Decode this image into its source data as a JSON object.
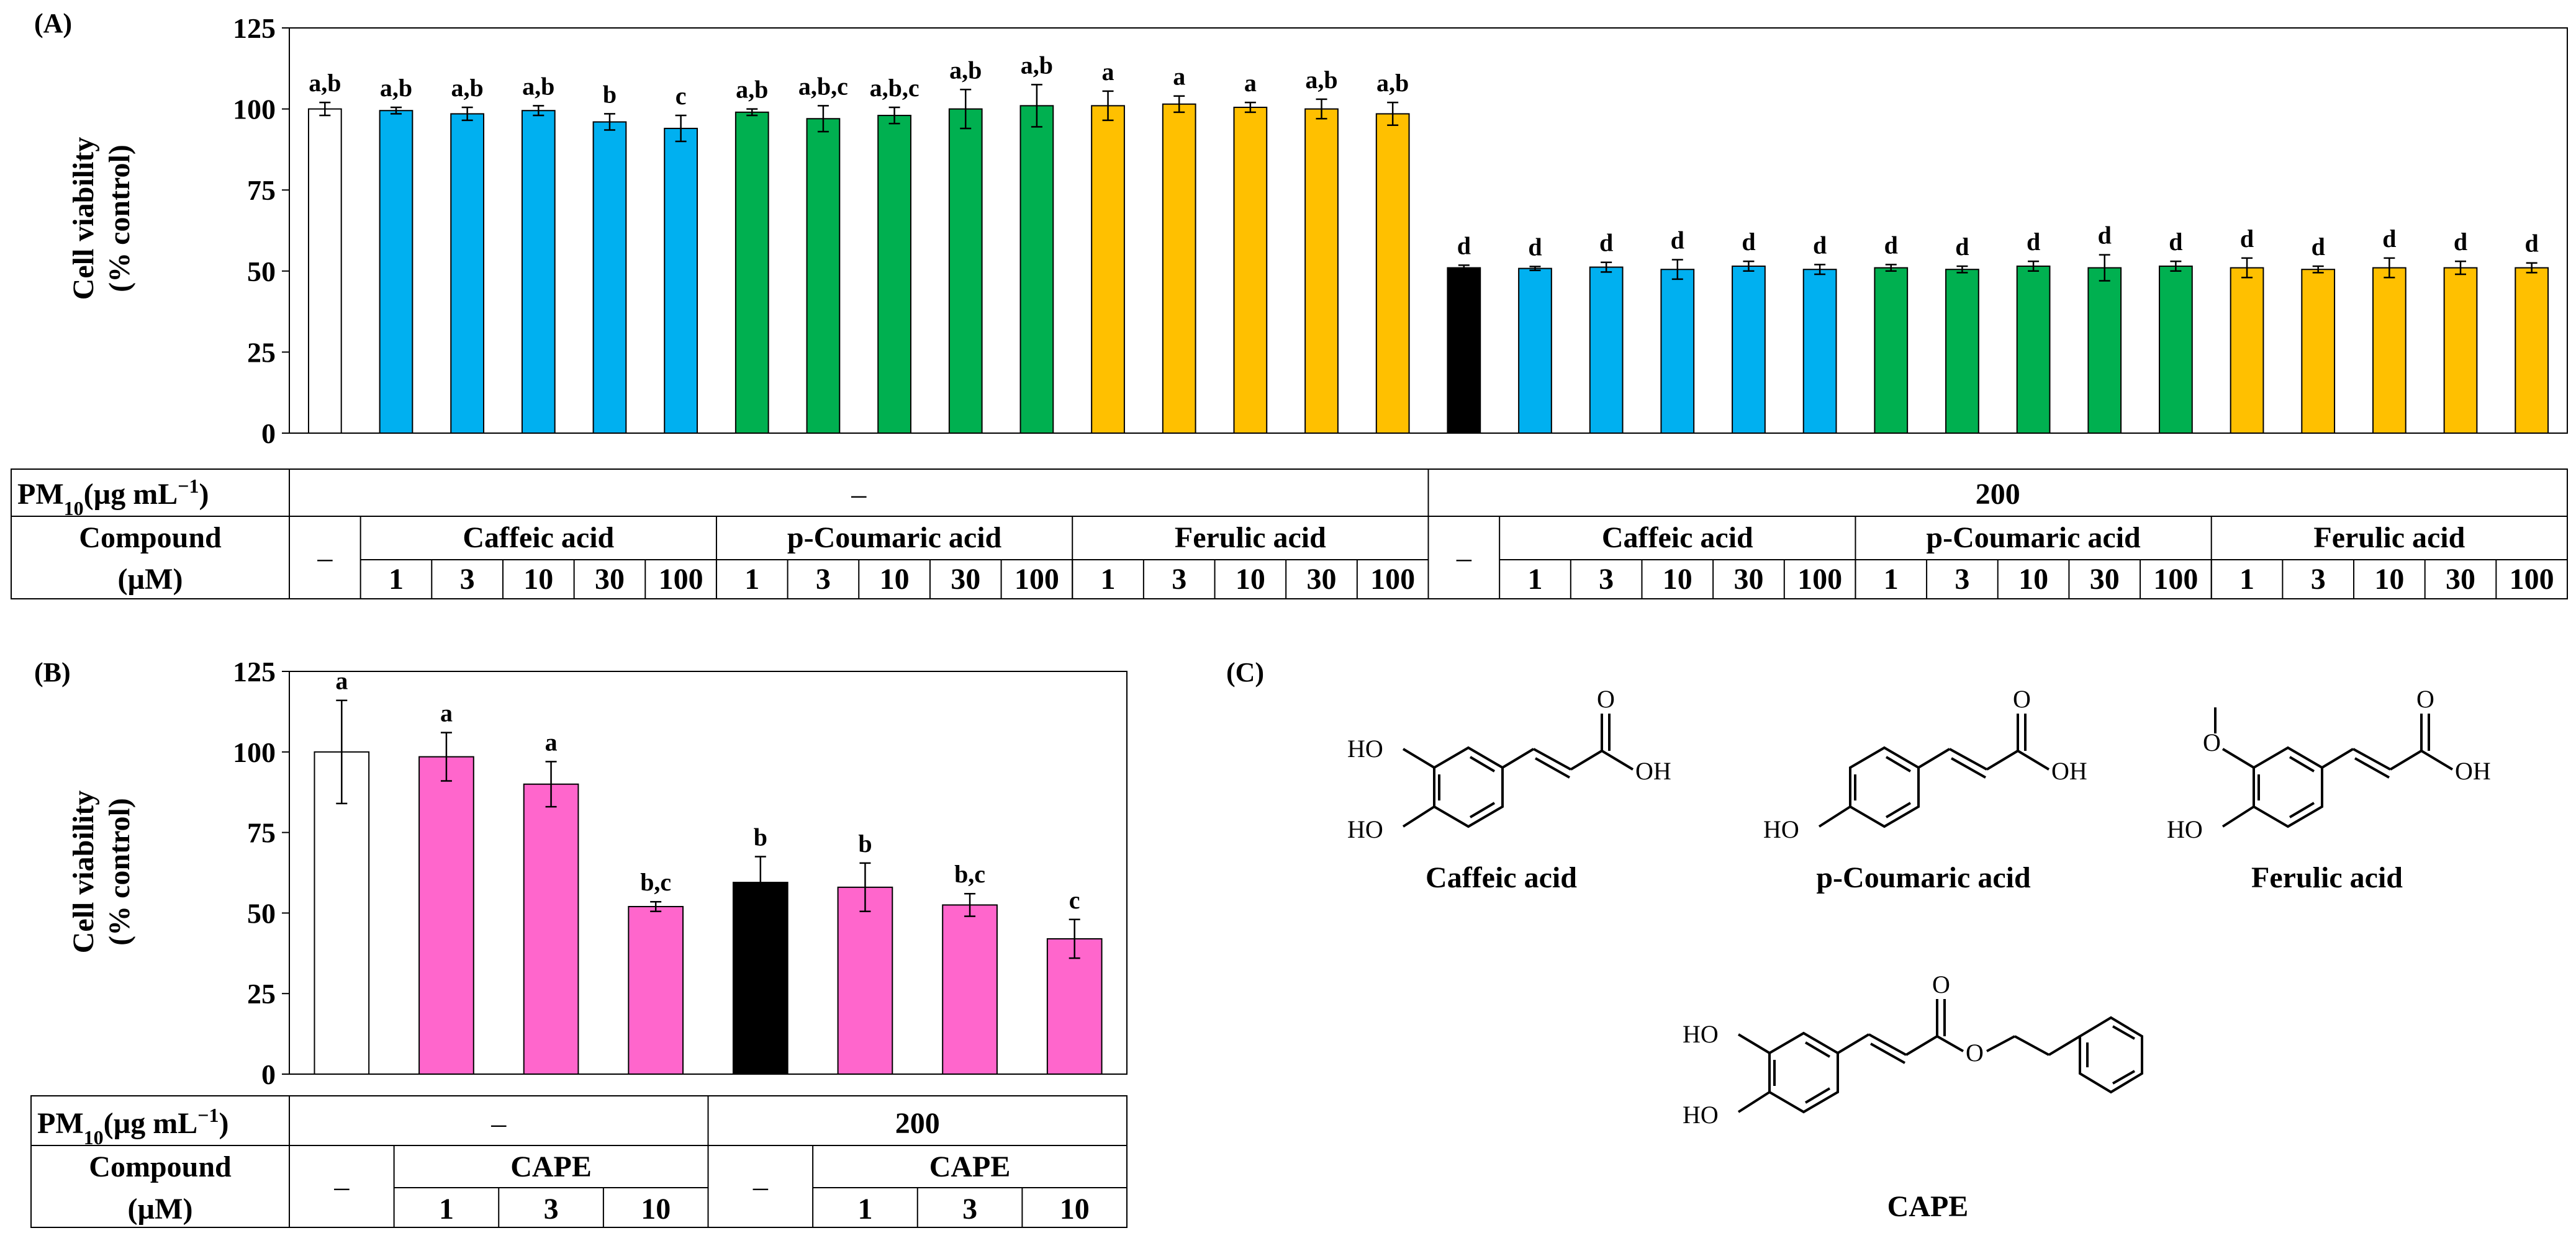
{
  "colors": {
    "control": "#ffffff",
    "pm": "#000000",
    "caffeic": "#00b0f0",
    "coumaric": "#00b050",
    "ferulic": "#ffc000",
    "cape": "#ff66cc"
  },
  "panel_a": {
    "label": "(A)",
    "ylabel_line1": "Cell viability",
    "ylabel_line2": "(% control)",
    "pm_label_text": "PM",
    "pm_label_sub": "10",
    "pm_label_unit": "(µg mL",
    "pm_label_exp": "−1",
    "pm_label_close": ")",
    "compound_label": "Compound",
    "um_label": "(µM)",
    "pm_values": [
      "–",
      "200"
    ],
    "dash": "–",
    "compound_groups": [
      "Caffeic acid",
      "p-Coumaric acid",
      "Ferulic acid"
    ],
    "concentrations": [
      "1",
      "3",
      "10",
      "30",
      "100"
    ]
  },
  "panel_b": {
    "label": "(B)",
    "ylabel_line1": "Cell viability",
    "ylabel_line2": "(% control)",
    "pm_values": [
      "–",
      "200"
    ],
    "dash": "–",
    "compound_group": "CAPE",
    "concentrations": [
      "1",
      "3",
      "10"
    ]
  },
  "panel_c": {
    "label": "(C)",
    "structures": [
      {
        "name": "Caffeic acid",
        "ho1": "HO",
        "ho2": "HO",
        "oh": "OH",
        "o": "O"
      },
      {
        "name": "p-Coumaric acid",
        "ho1": "",
        "ho2": "HO",
        "oh": "OH",
        "o": "O"
      },
      {
        "name": "Ferulic acid",
        "ho1": "O",
        "ho2": "HO",
        "oh": "OH",
        "o": "O"
      },
      {
        "name": "CAPE",
        "ho1": "HO",
        "ho2": "HO",
        "oh": "O",
        "o": "O"
      }
    ]
  },
  "chart_data": [
    {
      "type": "bar",
      "panel": "A",
      "title": "",
      "xlabel": "",
      "ylabel": "Cell viability (% control)",
      "ylim": [
        0,
        125
      ],
      "yticks": [
        0,
        25,
        50,
        75,
        100,
        125
      ],
      "grid": false,
      "bars": [
        {
          "pm": "–",
          "compound": "–",
          "conc": "",
          "color": "control",
          "value": 100,
          "err": 2,
          "letter": "a,b"
        },
        {
          "pm": "–",
          "compound": "Caffeic acid",
          "conc": "1",
          "color": "caffeic",
          "value": 99.5,
          "err": 1,
          "letter": "a,b"
        },
        {
          "pm": "–",
          "compound": "Caffeic acid",
          "conc": "3",
          "color": "caffeic",
          "value": 98.5,
          "err": 2,
          "letter": "a,b"
        },
        {
          "pm": "–",
          "compound": "Caffeic acid",
          "conc": "10",
          "color": "caffeic",
          "value": 99.5,
          "err": 1.5,
          "letter": "a,b"
        },
        {
          "pm": "–",
          "compound": "Caffeic acid",
          "conc": "30",
          "color": "caffeic",
          "value": 96,
          "err": 2.5,
          "letter": "b"
        },
        {
          "pm": "–",
          "compound": "Caffeic acid",
          "conc": "100",
          "color": "caffeic",
          "value": 94,
          "err": 4,
          "letter": "c"
        },
        {
          "pm": "–",
          "compound": "p-Coumaric acid",
          "conc": "1",
          "color": "coumaric",
          "value": 99,
          "err": 1,
          "letter": "a,b"
        },
        {
          "pm": "–",
          "compound": "p-Coumaric acid",
          "conc": "3",
          "color": "coumaric",
          "value": 97,
          "err": 4,
          "letter": "a,b,c"
        },
        {
          "pm": "–",
          "compound": "p-Coumaric acid",
          "conc": "10",
          "color": "coumaric",
          "value": 98,
          "err": 2.5,
          "letter": "a,b,c"
        },
        {
          "pm": "–",
          "compound": "p-Coumaric acid",
          "conc": "30",
          "color": "coumaric",
          "value": 100,
          "err": 6,
          "letter": "a,b"
        },
        {
          "pm": "–",
          "compound": "p-Coumaric acid",
          "conc": "100",
          "color": "coumaric",
          "value": 101,
          "err": 6.5,
          "letter": "a,b"
        },
        {
          "pm": "–",
          "compound": "Ferulic acid",
          "conc": "1",
          "color": "ferulic",
          "value": 101,
          "err": 4.5,
          "letter": "a"
        },
        {
          "pm": "–",
          "compound": "Ferulic acid",
          "conc": "3",
          "color": "ferulic",
          "value": 101.5,
          "err": 2.5,
          "letter": "a"
        },
        {
          "pm": "–",
          "compound": "Ferulic acid",
          "conc": "10",
          "color": "ferulic",
          "value": 100.5,
          "err": 1.5,
          "letter": "a"
        },
        {
          "pm": "–",
          "compound": "Ferulic acid",
          "conc": "30",
          "color": "ferulic",
          "value": 100,
          "err": 3,
          "letter": "a,b"
        },
        {
          "pm": "–",
          "compound": "Ferulic acid",
          "conc": "100",
          "color": "ferulic",
          "value": 98.5,
          "err": 3.5,
          "letter": "a,b"
        },
        {
          "pm": "200",
          "compound": "–",
          "conc": "",
          "color": "pm",
          "value": 51,
          "err": 0.8,
          "letter": "d"
        },
        {
          "pm": "200",
          "compound": "Caffeic acid",
          "conc": "1",
          "color": "caffeic",
          "value": 50.8,
          "err": 0.6,
          "letter": "d"
        },
        {
          "pm": "200",
          "compound": "Caffeic acid",
          "conc": "3",
          "color": "caffeic",
          "value": 51.2,
          "err": 1.5,
          "letter": "d"
        },
        {
          "pm": "200",
          "compound": "Caffeic acid",
          "conc": "10",
          "color": "caffeic",
          "value": 50.5,
          "err": 3,
          "letter": "d"
        },
        {
          "pm": "200",
          "compound": "Caffeic acid",
          "conc": "30",
          "color": "caffeic",
          "value": 51.5,
          "err": 1.5,
          "letter": "d"
        },
        {
          "pm": "200",
          "compound": "Caffeic acid",
          "conc": "100",
          "color": "caffeic",
          "value": 50.5,
          "err": 1.5,
          "letter": "d"
        },
        {
          "pm": "200",
          "compound": "p-Coumaric acid",
          "conc": "1",
          "color": "coumaric",
          "value": 51,
          "err": 1,
          "letter": "d"
        },
        {
          "pm": "200",
          "compound": "p-Coumaric acid",
          "conc": "3",
          "color": "coumaric",
          "value": 50.5,
          "err": 1,
          "letter": "d"
        },
        {
          "pm": "200",
          "compound": "p-Coumaric acid",
          "conc": "10",
          "color": "coumaric",
          "value": 51.5,
          "err": 1.5,
          "letter": "d"
        },
        {
          "pm": "200",
          "compound": "p-Coumaric acid",
          "conc": "30",
          "color": "coumaric",
          "value": 51,
          "err": 4,
          "letter": "d"
        },
        {
          "pm": "200",
          "compound": "p-Coumaric acid",
          "conc": "100",
          "color": "coumaric",
          "value": 51.5,
          "err": 1.5,
          "letter": "d"
        },
        {
          "pm": "200",
          "compound": "Ferulic acid",
          "conc": "1",
          "color": "ferulic",
          "value": 51,
          "err": 3,
          "letter": "d"
        },
        {
          "pm": "200",
          "compound": "Ferulic acid",
          "conc": "3",
          "color": "ferulic",
          "value": 50.5,
          "err": 1,
          "letter": "d"
        },
        {
          "pm": "200",
          "compound": "Ferulic acid",
          "conc": "10",
          "color": "ferulic",
          "value": 51,
          "err": 3,
          "letter": "d"
        },
        {
          "pm": "200",
          "compound": "Ferulic acid",
          "conc": "30",
          "color": "ferulic",
          "value": 51,
          "err": 2,
          "letter": "d"
        },
        {
          "pm": "200",
          "compound": "Ferulic acid",
          "conc": "100",
          "color": "ferulic",
          "value": 51,
          "err": 1.5,
          "letter": "d"
        }
      ]
    },
    {
      "type": "bar",
      "panel": "B",
      "title": "",
      "xlabel": "",
      "ylabel": "Cell viability (% control)",
      "ylim": [
        0,
        125
      ],
      "yticks": [
        0,
        25,
        50,
        75,
        100,
        125
      ],
      "grid": false,
      "bars": [
        {
          "pm": "–",
          "compound": "–",
          "conc": "",
          "color": "control",
          "value": 100,
          "err": 16,
          "letter": "a"
        },
        {
          "pm": "–",
          "compound": "CAPE",
          "conc": "1",
          "color": "cape",
          "value": 98.5,
          "err": 7.5,
          "letter": "a"
        },
        {
          "pm": "–",
          "compound": "CAPE",
          "conc": "3",
          "color": "cape",
          "value": 90,
          "err": 7,
          "letter": "a"
        },
        {
          "pm": "–",
          "compound": "CAPE",
          "conc": "10",
          "color": "cape",
          "value": 52,
          "err": 1.5,
          "letter": "b,c"
        },
        {
          "pm": "200",
          "compound": "–",
          "conc": "",
          "color": "pm",
          "value": 59.5,
          "err": 8,
          "letter": "b"
        },
        {
          "pm": "200",
          "compound": "CAPE",
          "conc": "1",
          "color": "cape",
          "value": 58,
          "err": 7.5,
          "letter": "b"
        },
        {
          "pm": "200",
          "compound": "CAPE",
          "conc": "3",
          "color": "cape",
          "value": 52.5,
          "err": 3.5,
          "letter": "b,c"
        },
        {
          "pm": "200",
          "compound": "CAPE",
          "conc": "10",
          "color": "cape",
          "value": 42,
          "err": 6,
          "letter": "c"
        }
      ]
    }
  ]
}
